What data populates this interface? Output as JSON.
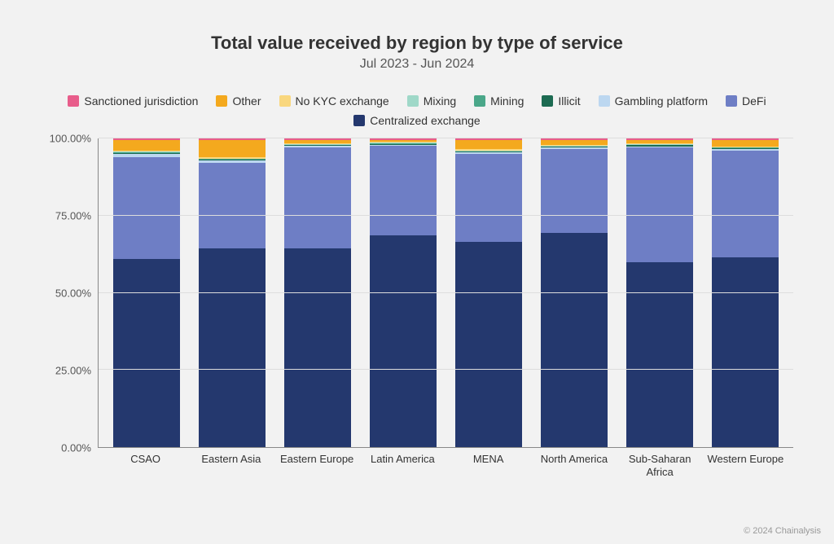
{
  "chart": {
    "type": "stacked-bar-100pct",
    "title": "Total value received by region by type of service",
    "subtitle": "Jul 2023 - Jun 2024",
    "title_fontsize": 22,
    "subtitle_fontsize": 16,
    "background_color": "#f2f2f2",
    "grid_color": "#dddddd",
    "axis_color": "#888888",
    "ylim": [
      0,
      100
    ],
    "ytick_step": 25,
    "y_ticks": [
      "0.00%",
      "25.00%",
      "50.00%",
      "75.00%",
      "100.00%"
    ],
    "bar_width_pct": 78,
    "series": [
      {
        "key": "sanctioned",
        "label": "Sanctioned jurisdiction",
        "color": "#e85d8b"
      },
      {
        "key": "other",
        "label": "Other",
        "color": "#f4a91e"
      },
      {
        "key": "nokyc",
        "label": "No KYC exchange",
        "color": "#f9d77e"
      },
      {
        "key": "mixing",
        "label": "Mixing",
        "color": "#9fd8c8"
      },
      {
        "key": "mining",
        "label": "Mining",
        "color": "#4aa789"
      },
      {
        "key": "illicit",
        "label": "Illicit",
        "color": "#1d6b52"
      },
      {
        "key": "gambling",
        "label": "Gambling platform",
        "color": "#bcd7f0"
      },
      {
        "key": "defi",
        "label": "DeFi",
        "color": "#6e7ec5"
      },
      {
        "key": "cex",
        "label": "Centralized exchange",
        "color": "#24386e"
      }
    ],
    "categories": [
      {
        "label": "CSAO",
        "values": {
          "cex": 61.0,
          "defi": 33.0,
          "gambling": 1.0,
          "illicit": 0.3,
          "mining": 0.2,
          "mixing": 0.2,
          "nokyc": 0.3,
          "other": 3.5,
          "sanctioned": 0.5
        }
      },
      {
        "label": "Eastern Asia",
        "values": {
          "cex": 64.5,
          "defi": 27.5,
          "gambling": 0.8,
          "illicit": 0.3,
          "mining": 0.2,
          "mixing": 0.2,
          "nokyc": 0.5,
          "other": 5.5,
          "sanctioned": 0.5
        }
      },
      {
        "label": "Eastern Europe",
        "values": {
          "cex": 64.5,
          "defi": 32.5,
          "gambling": 0.5,
          "illicit": 0.3,
          "mining": 0.2,
          "mixing": 0.2,
          "nokyc": 0.3,
          "other": 1.0,
          "sanctioned": 0.5
        }
      },
      {
        "label": "Latin America",
        "values": {
          "cex": 68.5,
          "defi": 29.0,
          "gambling": 0.5,
          "illicit": 0.2,
          "mining": 0.2,
          "mixing": 0.2,
          "nokyc": 0.4,
          "other": 0.5,
          "sanctioned": 0.5
        }
      },
      {
        "label": "MENA",
        "values": {
          "cex": 66.5,
          "defi": 28.5,
          "gambling": 0.5,
          "illicit": 0.2,
          "mining": 0.2,
          "mixing": 0.2,
          "nokyc": 0.4,
          "other": 3.0,
          "sanctioned": 0.5
        }
      },
      {
        "label": "North America",
        "values": {
          "cex": 69.5,
          "defi": 27.0,
          "gambling": 0.5,
          "illicit": 0.3,
          "mining": 0.2,
          "mixing": 0.2,
          "nokyc": 0.3,
          "other": 1.5,
          "sanctioned": 0.5
        }
      },
      {
        "label": "Sub-Saharan Africa",
        "values": {
          "cex": 60.0,
          "defi": 37.0,
          "gambling": 0.5,
          "illicit": 0.3,
          "mining": 0.2,
          "mixing": 0.2,
          "nokyc": 0.3,
          "other": 1.0,
          "sanctioned": 0.5
        }
      },
      {
        "label": "Western Europe",
        "values": {
          "cex": 61.5,
          "defi": 34.5,
          "gambling": 0.5,
          "illicit": 0.3,
          "mining": 0.2,
          "mixing": 0.2,
          "nokyc": 0.3,
          "other": 2.0,
          "sanctioned": 0.5
        }
      }
    ],
    "attribution": "© 2024 Chainalysis"
  }
}
